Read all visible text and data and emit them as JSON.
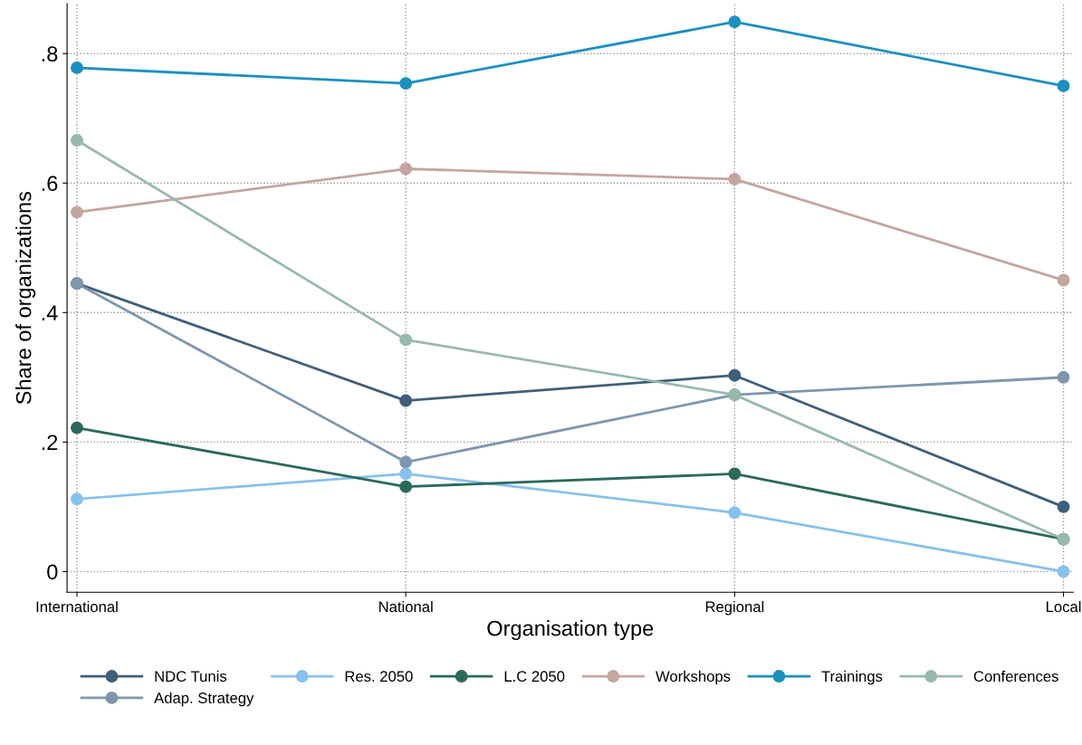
{
  "chart_data": {
    "type": "line",
    "xlabel": "Organisation type",
    "ylabel": "Share of organizations",
    "categories": [
      "International",
      "National",
      "Regional",
      "Local"
    ],
    "series": [
      {
        "name": "NDC Tunis",
        "color": "#3e5f7a",
        "values": [
          0.445,
          0.264,
          0.303,
          0.1
        ]
      },
      {
        "name": "Adap. Strategy",
        "color": "#7f96ad",
        "values": [
          0.445,
          0.169,
          0.273,
          0.3
        ]
      },
      {
        "name": "Res. 2050",
        "color": "#86c1ec",
        "values": [
          0.112,
          0.151,
          0.091,
          0.0
        ]
      },
      {
        "name": "L.C 2050",
        "color": "#2a6a5d",
        "values": [
          0.222,
          0.131,
          0.151,
          0.05
        ]
      },
      {
        "name": "Workshops",
        "color": "#c4a59f",
        "values": [
          0.555,
          0.622,
          0.606,
          0.45
        ]
      },
      {
        "name": "Trainings",
        "color": "#1a90c0",
        "values": [
          0.778,
          0.754,
          0.849,
          0.75
        ]
      },
      {
        "name": "Conferences",
        "color": "#98b9ae",
        "values": [
          0.666,
          0.358,
          0.273,
          0.05
        ]
      }
    ],
    "ylim": [
      -0.032,
      0.877
    ],
    "yticks": [
      {
        "value": 0,
        "label": "0"
      },
      {
        "value": 0.2,
        "label": ".2"
      },
      {
        "value": 0.4,
        "label": ".4"
      },
      {
        "value": 0.6,
        "label": ".6"
      },
      {
        "value": 0.8,
        "label": ".8"
      }
    ],
    "grid": true,
    "legend": "bottom",
    "marker": "circle",
    "line_style": "solid"
  }
}
